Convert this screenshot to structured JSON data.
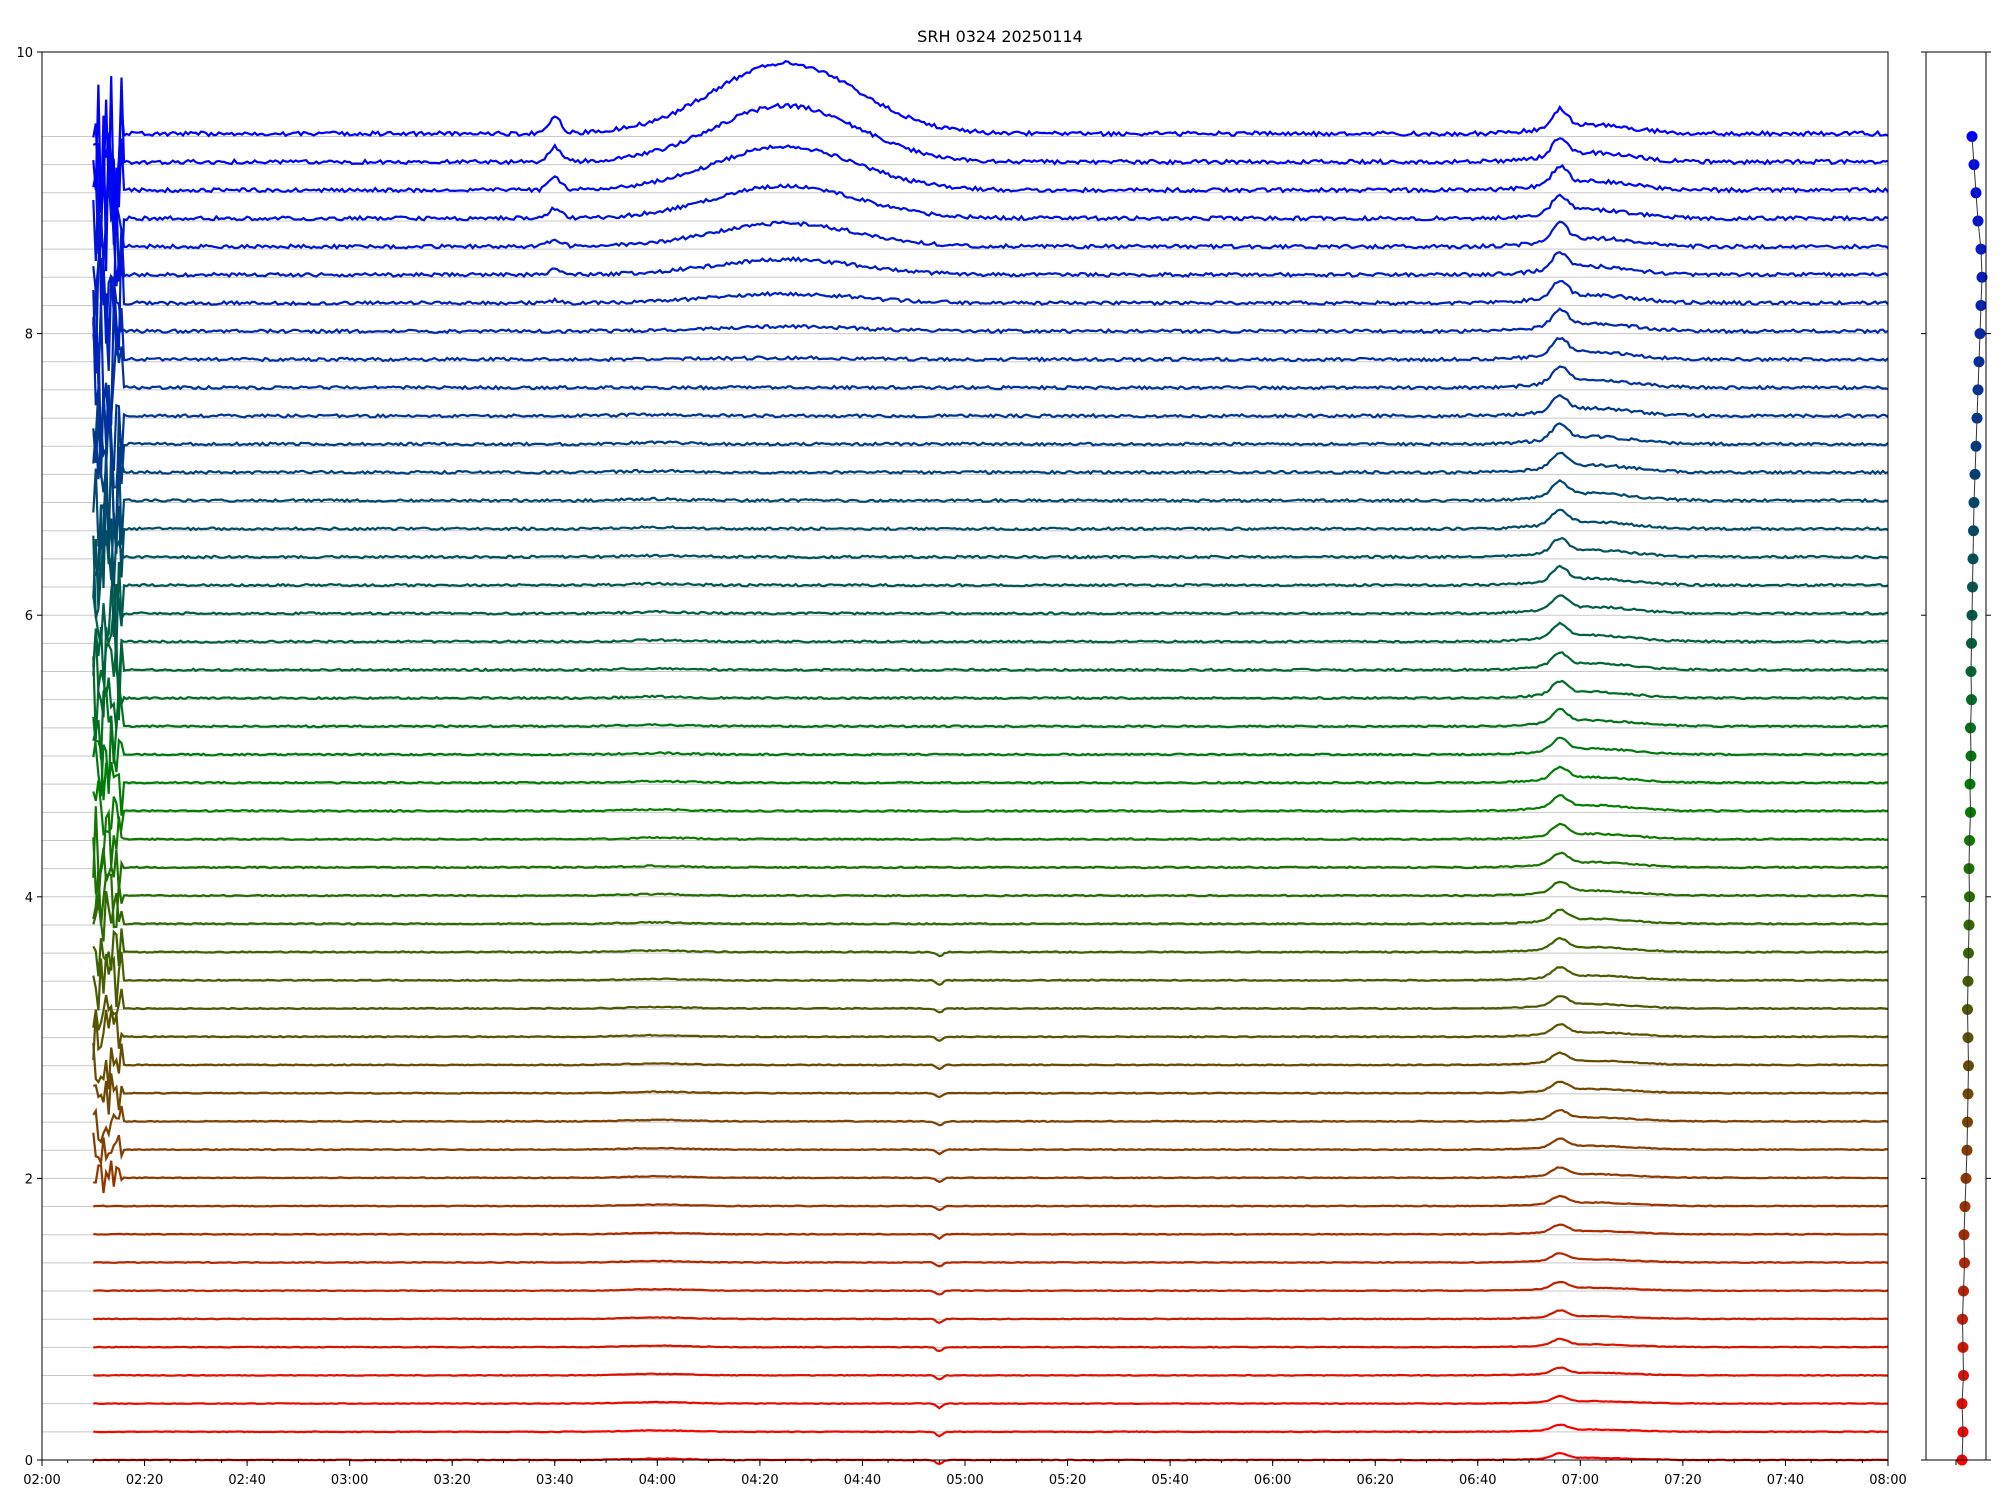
{
  "chart_data": {
    "type": "line",
    "title": "SRH 0324 20250114",
    "xlabel": "",
    "ylabel": "",
    "xlim": [
      "02:00",
      "08:00"
    ],
    "ylim": [
      0,
      10
    ],
    "x_ticks": [
      "02:00",
      "02:20",
      "02:40",
      "03:00",
      "03:20",
      "03:40",
      "04:00",
      "04:20",
      "04:40",
      "05:00",
      "05:20",
      "05:40",
      "06:00",
      "06:20",
      "06:40",
      "07:00",
      "07:20",
      "07:40",
      "08:00"
    ],
    "y_ticks": [
      "0",
      "2",
      "4",
      "6",
      "8",
      "10"
    ],
    "grid": "horizontal lines at each series baseline",
    "legend": "none",
    "n_series": 48,
    "baseline_step": 0.2,
    "series_baselines": [
      0.0,
      0.2,
      0.4,
      0.6,
      0.8,
      1.0,
      1.2,
      1.4,
      1.6,
      1.8,
      2.0,
      2.2,
      2.4,
      2.6,
      2.8,
      3.0,
      3.2,
      3.4,
      3.6,
      3.8,
      4.0,
      4.2,
      4.4,
      4.6,
      4.8,
      5.0,
      5.2,
      5.4,
      5.6,
      5.8,
      6.0,
      6.2,
      6.4,
      6.6,
      6.8,
      7.0,
      7.2,
      7.4,
      7.6,
      7.8,
      8.0,
      8.2,
      8.4,
      8.6,
      8.8,
      9.0,
      9.2,
      9.4
    ],
    "color_gradient": [
      "#ff0000",
      "#008000",
      "#0000ff"
    ],
    "events": [
      {
        "time": "03:40",
        "label": "spike",
        "amplitude_top": 0.12
      },
      {
        "time": "04:24",
        "label": "broad rise",
        "amplitude_top": 0.5
      },
      {
        "time": "04:55",
        "label": "dip",
        "amplitude_top": -0.03
      },
      {
        "time": "06:55",
        "label": "flare",
        "amplitude_top": 0.15
      }
    ],
    "side_panel": {
      "type": "scatter",
      "points_x": [
        0.0,
        0.02,
        0.0,
        0.03,
        0.02,
        0.01,
        0.03,
        0.05,
        0.04,
        0.06,
        0.08,
        0.1,
        0.11,
        0.12,
        0.13,
        0.12,
        0.11,
        0.12,
        0.13,
        0.14,
        0.15,
        0.14,
        0.15,
        0.17,
        0.16,
        0.18,
        0.17,
        0.19,
        0.18,
        0.19,
        0.2,
        0.21,
        0.22,
        0.23,
        0.24,
        0.26,
        0.28,
        0.3,
        0.32,
        0.34,
        0.36,
        0.38,
        0.4,
        0.38,
        0.32,
        0.28,
        0.24,
        0.2
      ]
    }
  }
}
